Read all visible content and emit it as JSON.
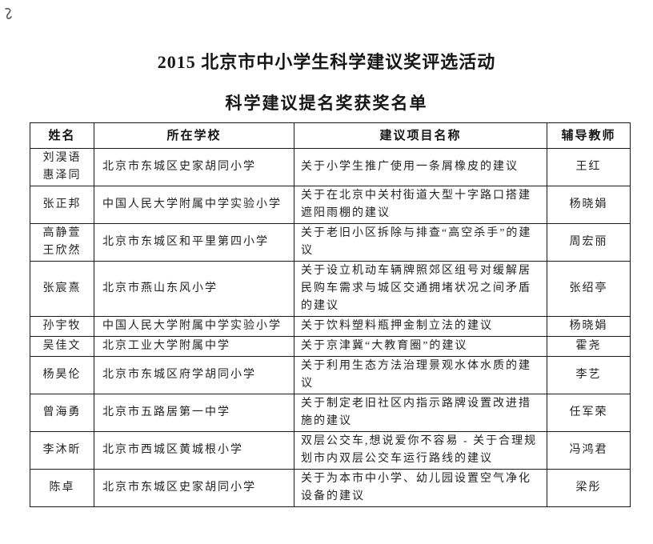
{
  "page": {
    "title": "2015 北京市中小学生科学建议奖评选活动",
    "subtitle": "科学建议提名奖获奖名单"
  },
  "table": {
    "headers": [
      "姓名",
      "所在学校",
      "建议项目名称",
      "辅导教师"
    ],
    "rows": [
      {
        "name": "刘淏语\n惠泽同",
        "school": "北京市东城区史家胡同小学",
        "project": "关于小学生推广使用一条屑橡皮的建议",
        "teacher": "王红"
      },
      {
        "name": "张正邦",
        "school": "中国人民大学附属中学实验小学",
        "project": "关于在北京中关村街道大型十字路口搭建遮阳雨棚的建议",
        "teacher": "杨晓娟"
      },
      {
        "name": "高静萱\n王欣然",
        "school": "北京市东城区和平里第四小学",
        "project": "关于老旧小区拆除与排查“高空杀手”的建议",
        "teacher": "周宏丽"
      },
      {
        "name": "张宸熹",
        "school": "北京市燕山东风小学",
        "project": "关于设立机动车辆牌照郊区组号对缓解居民购车需求与城区交通拥堵状况之间矛盾的建议",
        "teacher": "张绍亭"
      },
      {
        "name": "孙宇牧",
        "school": "中国人民大学附属中学实验小学",
        "project": "关于饮料塑料瓶押金制立法的建议",
        "teacher": "杨晓娟"
      },
      {
        "name": "吴佳文",
        "school": "北京工业大学附属中学",
        "project": "关于京津冀“大教育圈”的建议",
        "teacher": "霍尧"
      },
      {
        "name": "杨昊伦",
        "school": "北京市东城区府学胡同小学",
        "project": "关于利用生态方法治理景观水体水质的建议",
        "teacher": "李艺"
      },
      {
        "name": "曾海勇",
        "school": "北京市五路居第一中学",
        "project": "关于制定老旧社区内指示路牌设置改进措施的建议",
        "teacher": "任军荣"
      },
      {
        "name": "李沐昕",
        "school": "北京市西城区黄城根小学",
        "project": "双层公交车,想说爱你不容易 - 关于合理规划市内双层公交车运行路线的建议",
        "teacher": "冯鸿君"
      },
      {
        "name": "陈卓",
        "school": "北京市东城区史家胡同小学",
        "project": "关于为本市中小学、幼儿园设置空气净化设备的建议",
        "teacher": "梁彤"
      }
    ]
  }
}
